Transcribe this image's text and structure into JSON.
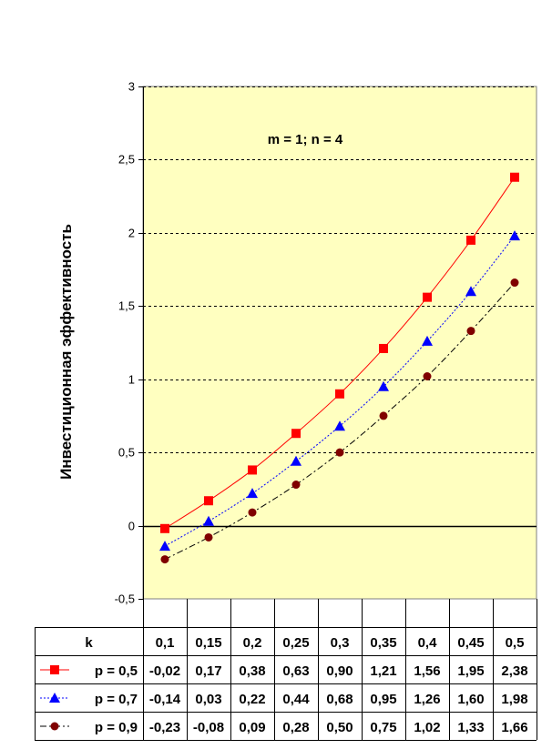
{
  "chart_data": {
    "type": "line",
    "annotation": "m = 1; n = 4",
    "ylabel": "Инвестиционная эффективность",
    "xlabel": "k",
    "ylim": [
      -0.5,
      3
    ],
    "yticks": [
      -0.5,
      0,
      0.5,
      1,
      1.5,
      2,
      2.5,
      3
    ],
    "ytick_labels": [
      "-0,5",
      "0",
      "0,5",
      "1",
      "1,5",
      "2",
      "2,5",
      "3"
    ],
    "grid": true,
    "plot_background": "#ffffc0",
    "categories": [
      "0,1",
      "0,15",
      "0,2",
      "0,25",
      "0,3",
      "0,35",
      "0,4",
      "0,45",
      "0,5"
    ],
    "series": [
      {
        "name": "p = 0,5",
        "color": "#ff0000",
        "marker": "square",
        "line": "solid",
        "values": [
          -0.02,
          0.17,
          0.38,
          0.63,
          0.9,
          1.21,
          1.56,
          1.95,
          2.38
        ],
        "labels": [
          "-0,02",
          "0,17",
          "0,38",
          "0,63",
          "0,90",
          "1,21",
          "1,56",
          "1,95",
          "2,38"
        ]
      },
      {
        "name": "p = 0,7",
        "color": "#0000ff",
        "marker": "triangle",
        "line": "dotted",
        "values": [
          -0.14,
          0.03,
          0.22,
          0.44,
          0.68,
          0.95,
          1.26,
          1.6,
          1.98
        ],
        "labels": [
          "-0,14",
          "0,03",
          "0,22",
          "0,44",
          "0,68",
          "0,95",
          "1,26",
          "1,60",
          "1,98"
        ]
      },
      {
        "name": "p = 0,9",
        "color": "#000000",
        "marker_color": "#800000",
        "marker": "circle",
        "line": "dashdot",
        "values": [
          -0.23,
          -0.08,
          0.09,
          0.28,
          0.5,
          0.75,
          1.02,
          1.33,
          1.66
        ],
        "labels": [
          "-0,23",
          "-0,08",
          "0,09",
          "0,28",
          "0,50",
          "0,75",
          "1,02",
          "1,33",
          "1,66"
        ]
      }
    ]
  }
}
